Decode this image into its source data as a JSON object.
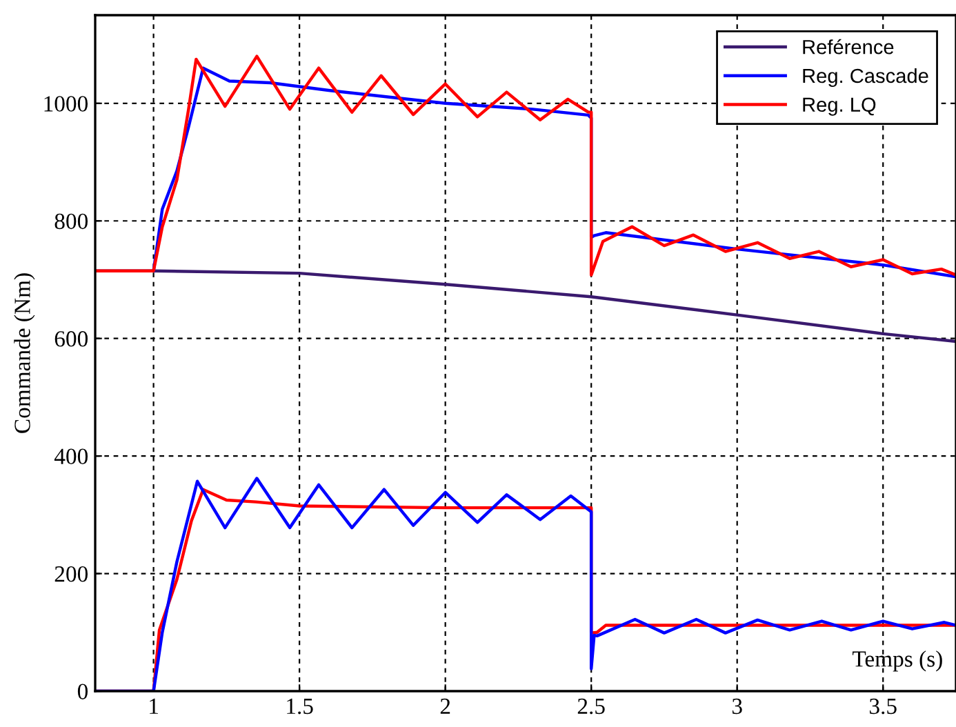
{
  "chart_data": {
    "type": "line",
    "xlabel": "Temps (s)",
    "ylabel": "Commande (Nm)",
    "xlim": [
      0.8,
      3.75
    ],
    "ylim": [
      0,
      1150
    ],
    "xticks": [
      1,
      1.5,
      2,
      2.5,
      3,
      3.5
    ],
    "yticks": [
      0,
      200,
      400,
      600,
      800,
      1000
    ],
    "grid": true,
    "legend": "top right",
    "line_style": "solid",
    "marker": "none",
    "series": [
      {
        "name": "Reférence",
        "color": "#3a1a6e",
        "x": [
          0.8,
          1.0,
          1.5,
          2.0,
          2.5,
          3.0,
          3.5,
          3.75
        ],
        "values": [
          715,
          715,
          711,
          692,
          671,
          640,
          608,
          595
        ]
      },
      {
        "name": "Reg. Cascade",
        "color": "#0000ff",
        "x": [
          1.0,
          1.03,
          1.08,
          1.12,
          1.17,
          1.26,
          1.4,
          1.6,
          2.0,
          2.3,
          2.49,
          2.5,
          2.5,
          2.51,
          2.55,
          3.0,
          3.5,
          3.75
        ],
        "values": [
          715,
          820,
          885,
          960,
          1060,
          1038,
          1035,
          1022,
          1000,
          990,
          980,
          975,
          772,
          775,
          780,
          752,
          725,
          705
        ]
      },
      {
        "name": "Reg. LQ",
        "color": "#ff0000",
        "x": [
          0.8,
          1.0,
          1.03,
          1.08,
          1.12,
          1.146,
          1.245,
          1.354,
          1.467,
          1.566,
          1.68,
          1.78,
          1.89,
          2.0,
          2.11,
          2.21,
          2.325,
          2.42,
          2.49,
          2.5,
          2.5,
          2.54,
          2.64,
          2.75,
          2.85,
          2.96,
          3.07,
          3.18,
          3.28,
          3.39,
          3.5,
          3.6,
          3.7,
          3.75
        ],
        "values": [
          715,
          715,
          790,
          870,
          990,
          1075,
          995,
          1080,
          990,
          1060,
          985,
          1047,
          981,
          1033,
          977,
          1019,
          972,
          1007,
          985,
          985,
          708,
          765,
          790,
          758,
          776,
          748,
          763,
          736,
          748,
          722,
          734,
          710,
          718,
          708
        ]
      },
      {
        "color": "#ff0000",
        "x": [
          0.8,
          1.0,
          1.02,
          1.08,
          1.13,
          1.17,
          1.25,
          1.35,
          1.5,
          2.0,
          2.5,
          2.5,
          2.52,
          2.55,
          3.0,
          3.75
        ],
        "values": [
          0,
          0,
          104,
          190,
          290,
          343,
          325,
          322,
          315,
          312,
          312,
          99,
          100,
          112,
          112,
          112
        ]
      },
      {
        "color": "#0000ff",
        "x": [
          0.8,
          1.0,
          1.03,
          1.08,
          1.15,
          1.245,
          1.354,
          1.467,
          1.566,
          1.68,
          1.79,
          1.89,
          2.0,
          2.11,
          2.21,
          2.325,
          2.43,
          2.5,
          2.5,
          2.51,
          2.52,
          2.65,
          2.75,
          2.86,
          2.96,
          3.07,
          3.18,
          3.29,
          3.39,
          3.5,
          3.6,
          3.71,
          3.75
        ],
        "values": [
          0,
          0,
          100,
          220,
          357,
          278,
          362,
          278,
          351,
          278,
          343,
          282,
          338,
          287,
          334,
          292,
          332,
          305,
          38,
          95,
          94,
          122,
          99,
          122,
          99,
          121,
          104,
          119,
          104,
          119,
          106,
          117,
          112
        ]
      }
    ]
  }
}
